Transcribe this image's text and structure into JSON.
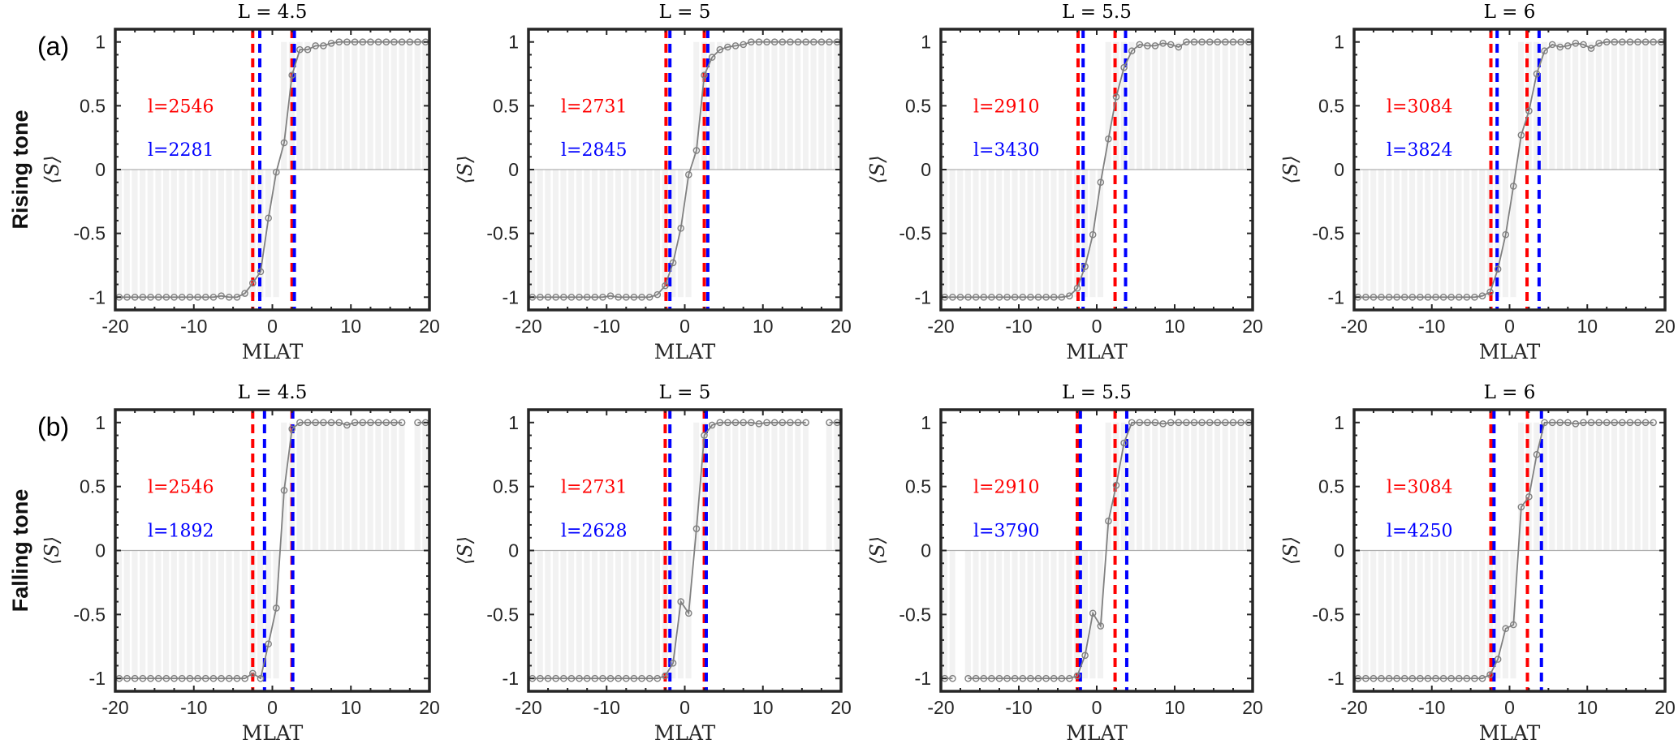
{
  "chart_data": {
    "type": "line",
    "figure_layout": "2 rows x 4 columns",
    "rows": [
      {
        "tag": "(a)",
        "label": "Rising tone"
      },
      {
        "tag": "(b)",
        "label": "Falling tone"
      }
    ],
    "xlabel": "MLAT",
    "ylabel": "⟨S⟩",
    "xlim": [
      -20,
      20
    ],
    "ylim": [
      -1.1,
      1.1
    ],
    "xticks": [
      -20,
      -10,
      0,
      10,
      20
    ],
    "xtick_labels": [
      "-20",
      "-10",
      "0",
      "10",
      "20"
    ],
    "yticks": [
      -1,
      -0.5,
      0,
      0.5,
      1
    ],
    "ytick_labels": [
      "-1",
      "-0.5",
      "0",
      "0.5",
      "1"
    ],
    "x": [
      -19.5,
      -18.5,
      -17.5,
      -16.5,
      -15.5,
      -14.5,
      -13.5,
      -12.5,
      -11.5,
      -10.5,
      -9.5,
      -8.5,
      -7.5,
      -6.5,
      -5.5,
      -4.5,
      -3.5,
      -2.5,
      -1.5,
      -0.5,
      0.5,
      1.5,
      2.5,
      3.5,
      4.5,
      5.5,
      6.5,
      7.5,
      8.5,
      9.5,
      10.5,
      11.5,
      12.5,
      13.5,
      14.5,
      15.5,
      16.5,
      17.5,
      18.5,
      19.5
    ],
    "colors": {
      "series": "#808080",
      "bar": "#f2f2f2",
      "red_line": "#ff0000",
      "blue_line": "#0000ff"
    },
    "panels": [
      {
        "row": 0,
        "title": "L = 4.5",
        "red_label": "l=2546",
        "blue_label": "l=2281",
        "red_lines": [
          -2.5,
          2.5
        ],
        "blue_lines": [
          -1.6,
          2.8
        ],
        "values": [
          -1,
          -1,
          -1,
          -1,
          -1,
          -1,
          -1,
          -1,
          -1,
          -1,
          -1,
          -1,
          -1,
          -0.99,
          -1,
          -1,
          -0.97,
          -0.89,
          -0.8,
          -0.38,
          -0.02,
          0.21,
          0.74,
          0.94,
          0.94,
          0.97,
          0.97,
          0.99,
          1,
          1,
          1,
          1,
          1,
          1,
          1,
          1,
          1,
          1,
          1,
          1
        ]
      },
      {
        "row": 0,
        "title": "L = 5",
        "red_label": "l=2731",
        "blue_label": "l=2845",
        "red_lines": [
          -2.4,
          2.5
        ],
        "blue_lines": [
          -1.9,
          2.95
        ],
        "values": [
          -1,
          -1,
          -1,
          -1,
          -1,
          -1,
          -1,
          -1,
          -1,
          -1,
          -0.99,
          -1,
          -1,
          -1,
          -1,
          -1,
          -0.98,
          -0.91,
          -0.73,
          -0.46,
          -0.04,
          0.15,
          0.74,
          0.88,
          0.94,
          0.96,
          0.97,
          0.98,
          1,
          1,
          1,
          1,
          1,
          1,
          1,
          1,
          1,
          1,
          1,
          1
        ]
      },
      {
        "row": 0,
        "title": "L = 5.5",
        "red_label": "l=2910",
        "blue_label": "l=3430",
        "red_lines": [
          -2.4,
          2.35
        ],
        "blue_lines": [
          -1.75,
          3.7
        ],
        "values": [
          -1,
          -1,
          -1,
          -1,
          -1,
          -1,
          -1,
          -1,
          -1,
          -1,
          -1,
          -1,
          -1,
          -1,
          -1,
          -1,
          -0.99,
          -0.93,
          -0.76,
          -0.51,
          -0.1,
          0.24,
          0.57,
          0.8,
          0.93,
          0.98,
          0.97,
          0.97,
          0.99,
          0.98,
          0.96,
          1,
          1,
          1,
          1,
          1,
          1,
          1,
          1,
          1
        ]
      },
      {
        "row": 0,
        "title": "L = 6",
        "red_label": "l=3084",
        "blue_label": "l=3824",
        "red_lines": [
          -2.4,
          2.25
        ],
        "blue_lines": [
          -1.6,
          3.8
        ],
        "values": [
          -1,
          -1,
          -1,
          -1,
          -1,
          -1,
          -1,
          -1,
          -1,
          -1,
          -1,
          -1,
          -1,
          -1,
          -1,
          -1,
          -0.99,
          -0.96,
          -0.78,
          -0.51,
          -0.13,
          0.27,
          0.46,
          0.75,
          0.93,
          0.98,
          0.96,
          0.97,
          0.99,
          0.98,
          0.95,
          0.99,
          1,
          1,
          1,
          1,
          1,
          1,
          1,
          1
        ]
      },
      {
        "row": 1,
        "title": "L = 4.5",
        "red_label": "l=2546",
        "blue_label": "l=1892",
        "red_lines": [
          -2.5,
          2.5
        ],
        "blue_lines": [
          -1.0,
          2.6
        ],
        "values": [
          -1,
          -1,
          -1,
          -1,
          -1,
          -1,
          -1,
          -1,
          -1,
          -1,
          -1,
          -1,
          -1,
          -1,
          -1,
          -1,
          -1,
          -0.96,
          -1,
          -0.73,
          -0.45,
          0.47,
          0.95,
          1,
          1,
          1,
          1,
          1,
          1,
          0.98,
          1,
          1,
          1,
          1,
          1,
          1,
          1,
          null,
          1,
          1
        ]
      },
      {
        "row": 1,
        "title": "L = 5",
        "red_label": "l=2731",
        "blue_label": "l=2628",
        "red_lines": [
          -2.5,
          2.5
        ],
        "blue_lines": [
          -1.9,
          2.75
        ],
        "values": [
          -1,
          -1,
          -1,
          -1,
          -1,
          -1,
          -1,
          -1,
          -1,
          -1,
          -1,
          -1,
          -1,
          -1,
          -1,
          -1,
          -1,
          -0.98,
          -0.88,
          -0.4,
          -0.49,
          0.17,
          0.9,
          0.98,
          1,
          1,
          1,
          1,
          1,
          0.99,
          1,
          1,
          1,
          1,
          1,
          1,
          null,
          null,
          1,
          1
        ]
      },
      {
        "row": 1,
        "title": "L = 5.5",
        "red_label": "l=2910",
        "blue_label": "l=3790",
        "red_lines": [
          -2.5,
          2.35
        ],
        "blue_lines": [
          -2.1,
          3.85
        ],
        "values": [
          -1,
          -1,
          null,
          -1,
          -1,
          -1,
          -1,
          -1,
          -1,
          -1,
          -1,
          -1,
          -1,
          -1,
          -1,
          -1,
          -1,
          -0.98,
          -0.82,
          -0.49,
          -0.59,
          0.23,
          0.51,
          0.84,
          1,
          1,
          1,
          1,
          0.99,
          1,
          1,
          1,
          1,
          1,
          1,
          1,
          1,
          1,
          1,
          1
        ]
      },
      {
        "row": 1,
        "title": "L = 6",
        "red_label": "l=3084",
        "blue_label": "l=4250",
        "red_lines": [
          -2.4,
          2.3
        ],
        "blue_lines": [
          -2.0,
          4.1
        ],
        "values": [
          -1,
          -1,
          -1,
          -1,
          -1,
          -1,
          -1,
          -1,
          -1,
          -1,
          -1,
          -1,
          -1,
          -1,
          -1,
          -1,
          -1,
          -0.97,
          -0.85,
          -0.61,
          -0.58,
          0.34,
          0.42,
          0.75,
          1,
          1,
          1,
          1,
          0.99,
          1,
          1,
          1,
          1,
          1,
          1,
          1,
          1,
          1,
          1,
          null
        ]
      }
    ]
  }
}
